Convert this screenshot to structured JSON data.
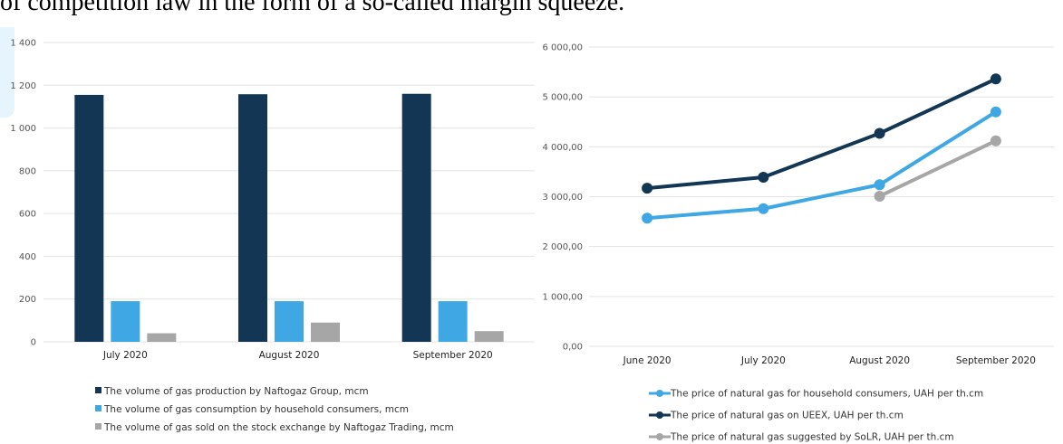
{
  "header_text": "of competition law in the form of a so-called margin squeeze.",
  "colors": {
    "dark_navy": "#123654",
    "light_blue": "#3fa8e4",
    "gray": "#a6a6a6",
    "grid": "#e3e3e3"
  },
  "chart_data": [
    {
      "type": "bar",
      "categories": [
        "July 2020",
        "August 2020",
        "September 2020"
      ],
      "y_ticks": [
        "1 400",
        "1 200",
        "1 000",
        "800",
        "600",
        "400",
        "200",
        "0"
      ],
      "ylim": [
        0,
        1400
      ],
      "grid": true,
      "legend_position": "bottom",
      "series": [
        {
          "name": "The volume of gas production by Naftogaz Group, mcm",
          "color": "#123654",
          "values": [
            1155,
            1158,
            1160
          ]
        },
        {
          "name": "The volume of gas consumption by household consumers, mcm",
          "color": "#3fa8e4",
          "values": [
            190,
            190,
            190
          ]
        },
        {
          "name": "The volume of gas sold on the stock exchange by Naftogaz Trading, mcm",
          "color": "#a6a6a6",
          "values": [
            40,
            90,
            50
          ]
        }
      ]
    },
    {
      "type": "line",
      "categories": [
        "June 2020",
        "July 2020",
        "August 2020",
        "September 2020"
      ],
      "y_ticks": [
        "6 000,00",
        "5 000,00",
        "4 000,00",
        "3 000,00",
        "2 000,00",
        "1 000,00",
        "0,00"
      ],
      "ylim": [
        0,
        6000
      ],
      "grid": true,
      "legend_position": "bottom",
      "series": [
        {
          "name": "The price of natural gas for household consumers, UAH per th.cm",
          "color": "#3fa8e4",
          "values": [
            2570,
            2760,
            3240,
            4700
          ]
        },
        {
          "name": "The price of natural gas on UEEX, UAH per th.cm",
          "color": "#123654",
          "values": [
            3170,
            3390,
            4270,
            5360
          ]
        },
        {
          "name": "The price of natural gas suggested by SoLR, UAH per th.cm",
          "color": "#a6a6a6",
          "values": [
            null,
            null,
            3010,
            4120
          ]
        }
      ]
    }
  ]
}
